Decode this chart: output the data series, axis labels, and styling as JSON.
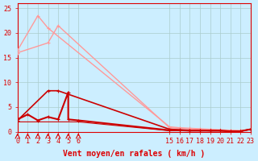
{
  "background_color": "#cceeff",
  "grid_color": "#aacccc",
  "line_color_dark": "#dd0000",
  "line_color_light": "#ff9999",
  "xlabel": "Vent moyen/en rafales ( km/h )",
  "ylabel": "",
  "ylim": [
    0,
    26
  ],
  "xlim": [
    0,
    23
  ],
  "yticks": [
    0,
    5,
    10,
    15,
    20,
    25
  ],
  "xticks_left": [
    0,
    1,
    2,
    3,
    4,
    5,
    6
  ],
  "xticks_right": [
    15,
    16,
    17,
    18,
    19,
    20,
    21,
    22,
    23
  ],
  "series": [
    {
      "x": [
        0,
        2,
        3,
        15,
        16,
        17,
        18,
        19,
        20,
        21,
        22,
        23
      ],
      "y": [
        16.5,
        23.5,
        21.0,
        1.0,
        0.8,
        0.7,
        0.6,
        0.5,
        0.4,
        0.3,
        0.2,
        0.5
      ],
      "color": "#ff9999",
      "lw": 1.0,
      "marker": "+"
    },
    {
      "x": [
        0,
        3,
        4,
        15,
        16,
        17,
        18,
        19,
        20,
        21,
        22,
        23
      ],
      "y": [
        16.0,
        18.0,
        21.5,
        0.8,
        0.7,
        0.6,
        0.5,
        0.4,
        0.3,
        0.3,
        0.2,
        0.5
      ],
      "color": "#ff9999",
      "lw": 1.0,
      "marker": "+"
    },
    {
      "x": [
        0,
        3,
        4,
        15,
        16,
        17,
        18,
        19,
        20,
        21,
        22,
        23
      ],
      "y": [
        2.3,
        8.3,
        8.3,
        0.5,
        0.4,
        0.3,
        0.3,
        0.2,
        0.2,
        0.1,
        0.1,
        0.5
      ],
      "color": "#cc0000",
      "lw": 1.2,
      "marker": "+"
    },
    {
      "x": [
        0,
        1,
        2,
        3,
        4,
        5,
        5,
        6,
        15,
        16,
        17,
        18,
        19,
        20,
        21,
        22,
        23
      ],
      "y": [
        2.5,
        3.5,
        2.3,
        3.0,
        2.5,
        8.0,
        2.5,
        2.3,
        0.3,
        0.3,
        0.2,
        0.2,
        0.2,
        0.2,
        0.1,
        0.1,
        0.5
      ],
      "color": "#cc0000",
      "lw": 1.5,
      "marker": "+"
    },
    {
      "x": [
        0,
        1,
        2,
        3,
        4,
        5,
        6,
        15,
        16,
        17,
        18,
        19,
        20,
        21,
        22,
        23
      ],
      "y": [
        2.0,
        2.0,
        2.0,
        2.0,
        2.0,
        2.0,
        2.0,
        0.2,
        0.2,
        0.2,
        0.2,
        0.2,
        0.2,
        0.1,
        0.1,
        0.5
      ],
      "color": "#cc0000",
      "lw": 0.8,
      "marker": null
    }
  ],
  "wind_arrows": [
    0,
    1,
    2,
    3,
    4,
    5,
    6
  ],
  "title_fontsize": 9,
  "axis_fontsize": 7,
  "tick_fontsize": 6
}
